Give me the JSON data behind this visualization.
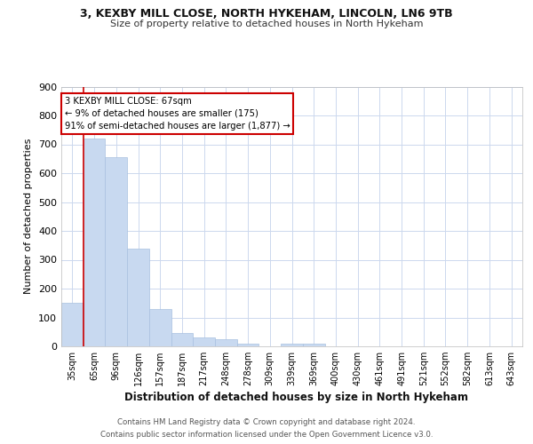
{
  "title1": "3, KEXBY MILL CLOSE, NORTH HYKEHAM, LINCOLN, LN6 9TB",
  "title2": "Size of property relative to detached houses in North Hykeham",
  "xlabel": "Distribution of detached houses by size in North Hykeham",
  "ylabel": "Number of detached properties",
  "categories": [
    "35sqm",
    "65sqm",
    "96sqm",
    "126sqm",
    "157sqm",
    "187sqm",
    "217sqm",
    "248sqm",
    "278sqm",
    "309sqm",
    "339sqm",
    "369sqm",
    "400sqm",
    "430sqm",
    "461sqm",
    "491sqm",
    "521sqm",
    "552sqm",
    "582sqm",
    "613sqm",
    "643sqm"
  ],
  "values": [
    150,
    720,
    655,
    340,
    130,
    45,
    30,
    25,
    10,
    0,
    8,
    8,
    0,
    0,
    0,
    0,
    0,
    0,
    0,
    0,
    0
  ],
  "bar_color": "#c8d9f0",
  "bar_edge_color": "#a8c0e0",
  "ylim": [
    0,
    900
  ],
  "yticks": [
    0,
    100,
    200,
    300,
    400,
    500,
    600,
    700,
    800,
    900
  ],
  "annotation_line1": "3 KEXBY MILL CLOSE: 67sqm",
  "annotation_line2": "← 9% of detached houses are smaller (175)",
  "annotation_line3": "91% of semi-detached houses are larger (1,877) →",
  "annotation_box_color": "#ffffff",
  "annotation_box_edge_color": "#cc0000",
  "footer_line1": "Contains HM Land Registry data © Crown copyright and database right 2024.",
  "footer_line2": "Contains public sector information licensed under the Open Government Licence v3.0.",
  "red_line_x": 1,
  "background_color": "#ffffff",
  "grid_color": "#ccd8ee"
}
